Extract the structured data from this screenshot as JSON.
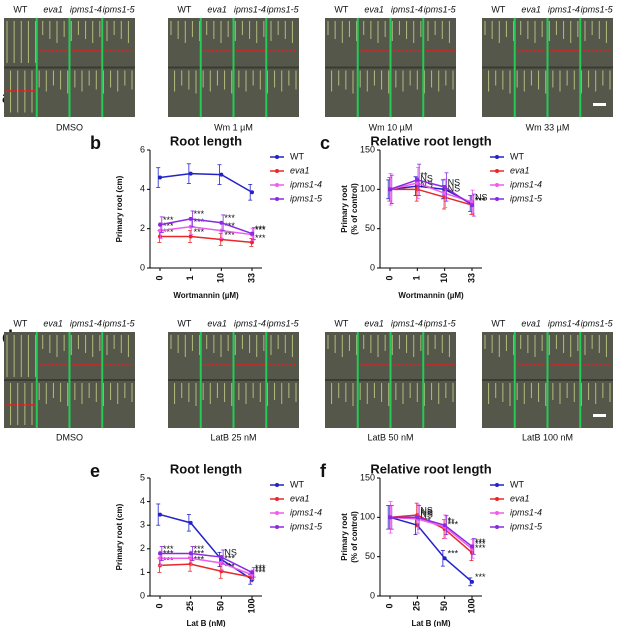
{
  "photo_rows": [
    {
      "letter": "a",
      "genotypes": [
        "WT",
        "eva1",
        "ipms1-4",
        "ipms1-5"
      ],
      "captions": [
        "DMSO",
        "Wm 1 µM",
        "Wm 10 µM",
        "Wm 33 µM"
      ]
    },
    {
      "letter": "d",
      "genotypes": [
        "WT",
        "eva1",
        "ipms1-4",
        "ipms1-5"
      ],
      "captions": [
        "DMSO",
        "LatB 25 nM",
        "LatB 50 nM",
        "LatB 100 nM"
      ]
    }
  ],
  "chart_data": [
    {
      "type": "line",
      "letter": "b",
      "title": "Root length",
      "x_label": "Wortmannin (µM)",
      "y_label": [
        "Primary root (cm)"
      ],
      "categories": [
        "0",
        "1",
        "10",
        "33"
      ],
      "ylim": [
        0,
        6
      ],
      "yticks": [
        0,
        2,
        4,
        6
      ],
      "series": [
        {
          "name": "WT",
          "color": "#2323c8",
          "values": [
            4.6,
            4.8,
            4.75,
            3.85
          ],
          "errors": [
            0.5,
            0.5,
            0.5,
            0.4
          ],
          "significance": [
            null,
            null,
            null,
            null
          ]
        },
        {
          "name": "eva1",
          "color": "#e8282a",
          "values": [
            1.6,
            1.6,
            1.45,
            1.3
          ],
          "errors": [
            0.3,
            0.3,
            0.3,
            0.2
          ],
          "significance": [
            "***",
            "***",
            "***",
            "***"
          ]
        },
        {
          "name": "ipms1-4",
          "color": "#ee5cee",
          "values": [
            1.9,
            2.1,
            1.9,
            1.7
          ],
          "errors": [
            0.4,
            0.4,
            0.4,
            0.3
          ],
          "significance": [
            "***",
            "***",
            "***",
            "***"
          ]
        },
        {
          "name": "ipms1-5",
          "color": "#8a2be2",
          "values": [
            2.2,
            2.5,
            2.3,
            1.75
          ],
          "errors": [
            0.4,
            0.4,
            0.4,
            0.3
          ],
          "significance": [
            "***",
            "***",
            "***",
            "***"
          ]
        }
      ]
    },
    {
      "type": "line",
      "letter": "c",
      "title": "Relative root length",
      "x_label": "Wortmannin (µM)",
      "y_label": [
        "Primary root",
        "(% of control)"
      ],
      "categories": [
        "0",
        "1",
        "10",
        "33"
      ],
      "ylim": [
        0,
        150
      ],
      "yticks": [
        0,
        50,
        100,
        150
      ],
      "series": [
        {
          "name": "WT",
          "color": "#2323c8",
          "values": [
            100,
            104,
            100,
            82
          ],
          "errors": [
            12,
            12,
            12,
            10
          ],
          "significance": [
            null,
            null,
            null,
            null
          ]
        },
        {
          "name": "eva1",
          "color": "#e8282a",
          "values": [
            100,
            100,
            90,
            80
          ],
          "errors": [
            15,
            15,
            15,
            12
          ],
          "significance": [
            null,
            "NS",
            "*",
            "***"
          ]
        },
        {
          "name": "ipms1-4",
          "color": "#ee5cee",
          "values": [
            100,
            108,
            95,
            84
          ],
          "errors": [
            20,
            20,
            18,
            15
          ],
          "significance": [
            null,
            "NS",
            "NS",
            "NS"
          ]
        },
        {
          "name": "ipms1-5",
          "color": "#8a2be2",
          "values": [
            100,
            112,
            103,
            80
          ],
          "errors": [
            18,
            20,
            18,
            14
          ],
          "significance": [
            null,
            "**",
            "NS",
            "***"
          ]
        }
      ]
    },
    {
      "type": "line",
      "letter": "e",
      "title": "Root length",
      "x_label": "Lat B (nM)",
      "y_label": [
        "Primary root (cm)"
      ],
      "categories": [
        "0",
        "25",
        "50",
        "100"
      ],
      "ylim": [
        0,
        5
      ],
      "yticks": [
        0,
        1,
        2,
        3,
        4,
        5
      ],
      "series": [
        {
          "name": "WT",
          "color": "#2323c8",
          "values": [
            3.45,
            3.1,
            1.55,
            0.7
          ],
          "errors": [
            0.45,
            0.35,
            0.3,
            0.2
          ],
          "significance": [
            null,
            null,
            null,
            null
          ]
        },
        {
          "name": "eva1",
          "color": "#e8282a",
          "values": [
            1.3,
            1.35,
            1.05,
            0.8
          ],
          "errors": [
            0.3,
            0.3,
            0.3,
            0.2
          ],
          "significance": [
            "***",
            "***",
            "***",
            "***"
          ]
        },
        {
          "name": "ipms1-4",
          "color": "#ee5cee",
          "values": [
            1.6,
            1.6,
            1.4,
            0.9
          ],
          "errors": [
            0.3,
            0.3,
            0.3,
            0.2
          ],
          "significance": [
            "***",
            "***",
            "***",
            "***"
          ]
        },
        {
          "name": "ipms1-5",
          "color": "#8a2be2",
          "values": [
            1.8,
            1.8,
            1.65,
            1.0
          ],
          "errors": [
            0.3,
            0.3,
            0.3,
            0.2
          ],
          "significance": [
            "***",
            "***",
            "NS",
            "***"
          ]
        }
      ]
    },
    {
      "type": "line",
      "letter": "f",
      "title": "Relative root length",
      "x_label": "Lat B (nM)",
      "y_label": [
        "Primary root",
        "(% of control)"
      ],
      "categories": [
        "0",
        "25",
        "50",
        "100"
      ],
      "ylim": [
        0,
        150
      ],
      "yticks": [
        0,
        50,
        100,
        150
      ],
      "series": [
        {
          "name": "WT",
          "color": "#2323c8",
          "values": [
            100,
            90,
            48,
            18
          ],
          "errors": [
            15,
            12,
            10,
            5
          ],
          "significance": [
            null,
            "***",
            "***",
            "***"
          ]
        },
        {
          "name": "eva1",
          "color": "#e8282a",
          "values": [
            100,
            103,
            85,
            55
          ],
          "errors": [
            15,
            15,
            12,
            10
          ],
          "significance": [
            null,
            "NS",
            "***",
            "***"
          ]
        },
        {
          "name": "ipms1-4",
          "color": "#ee5cee",
          "values": [
            100,
            98,
            88,
            60
          ],
          "errors": [
            20,
            18,
            15,
            12
          ],
          "significance": [
            null,
            "NS",
            "**",
            "***"
          ]
        },
        {
          "name": "ipms1-5",
          "color": "#8a2be2",
          "values": [
            100,
            100,
            90,
            63
          ],
          "errors": [
            15,
            15,
            12,
            10
          ],
          "significance": [
            null,
            "NS",
            "*",
            "***"
          ]
        }
      ]
    }
  ]
}
